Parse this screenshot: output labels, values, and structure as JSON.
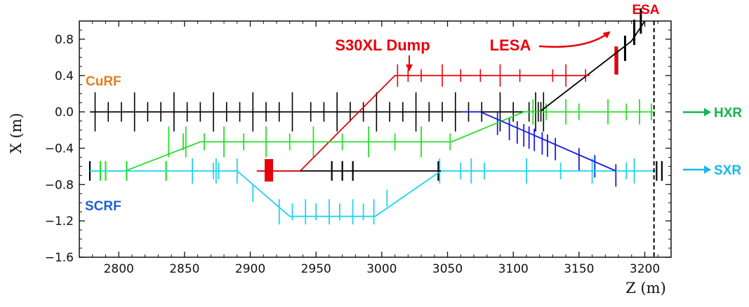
{
  "chart_data": {
    "type": "line",
    "title": "",
    "xlabel": "Z (m)",
    "ylabel": "X (m)",
    "xlim": [
      2770,
      3220
    ],
    "ylim": [
      -1.6,
      1.0
    ],
    "xticks": [
      2800,
      2850,
      2900,
      2950,
      3000,
      3050,
      3100,
      3150,
      3200
    ],
    "yticks": [
      -1.6,
      -1.2,
      -0.8,
      -0.4,
      0.0,
      0.4,
      0.8
    ],
    "ytick_labels": [
      "−1.6",
      "−1.2",
      "−0.8",
      "−0.4",
      "0.0",
      "0.4",
      "0.8"
    ],
    "grid": false,
    "series": [
      {
        "name": "CuRF",
        "color": "#e0801e",
        "lines": [
          {
            "color": "#000000",
            "x": [
              2778,
              3120
            ],
            "y": [
              0.0,
              0.0
            ]
          },
          {
            "color": "#000000",
            "x": [
              3120,
              3190,
              3200
            ],
            "y": [
              0.0,
              0.78,
              1.0
            ]
          },
          {
            "color": "#e8000b",
            "x": [
              2938,
              3010,
              3158
            ],
            "y": [
              -0.65,
              0.4,
              0.4
            ]
          }
        ]
      },
      {
        "name": "SCRF",
        "color": "#1f5fd6",
        "lines": [
          {
            "color": "#26e026",
            "x": [
              2778,
              2805,
              2862,
              3053,
              3108,
              3208
            ],
            "y": [
              -0.65,
              -0.65,
              -0.33,
              -0.33,
              0.0,
              0.0
            ]
          },
          {
            "color": "#1fd3ef",
            "x": [
              2778,
              2890,
              2930,
              2995,
              3045,
              3208
            ],
            "y": [
              -0.65,
              -0.65,
              -1.15,
              -1.15,
              -0.65,
              -0.65
            ]
          },
          {
            "color": "#1a1ae6",
            "x": [
              3060,
              3075,
              3178
            ],
            "y": [
              0.0,
              0.0,
              -0.65
            ]
          },
          {
            "color": "#000000",
            "x": [
              2905,
              3045
            ],
            "y": [
              -0.65,
              -0.65
            ]
          },
          {
            "color": "#e8000b",
            "x": [
              2905,
              2938
            ],
            "y": [
              -0.65,
              -0.65
            ]
          }
        ]
      }
    ],
    "elements": {
      "black": [
        2782,
        2792,
        2802,
        2812,
        2822,
        2832,
        2842,
        2852,
        2862,
        2872,
        2882,
        2892,
        2902,
        2912,
        2922,
        2932,
        2946,
        2956,
        2966,
        2976,
        2986,
        2996,
        3006,
        3016,
        3026,
        3036,
        3046,
        3056,
        3066,
        3076,
        3090,
        3100,
        3112,
        3117,
        3119,
        3121,
        3123
      ],
      "black_low": [
        2778,
        2962,
        2970,
        2978,
        3043,
        3209,
        3213
      ],
      "black_ramp": [
        3179,
        3185,
        3192,
        3197
      ],
      "green_mid": [
        2838,
        2849,
        2851,
        2865,
        2880,
        2895,
        2912,
        2930,
        2948,
        2970,
        2990,
        3010,
        3030,
        3052
      ],
      "green_top": [
        3115,
        3125,
        3140,
        3150,
        3172,
        3186,
        3196,
        3205
      ],
      "green_low": [
        2786,
        2790,
        2806,
        2836
      ],
      "cyan_low": [
        2856,
        2872,
        2874,
        2876,
        2890,
        2902,
        2922,
        2932,
        2942,
        2950,
        2960,
        2968,
        2978,
        2986,
        2994,
        3004,
        3044,
        3060,
        3068,
        3078,
        3110,
        3136,
        3160,
        3186,
        3192
      ],
      "red_top": [
        3012,
        3020,
        3030,
        3046,
        3060,
        3075,
        3090,
        3105,
        3130,
        3140,
        3155
      ],
      "blue_slant": [
        3088,
        3097,
        3103,
        3108,
        3112,
        3116,
        3122,
        3126,
        3132,
        3150,
        3162,
        3178
      ]
    },
    "annotations": {
      "s30xl_dump": "S30XL Dump",
      "lesa": "LESA",
      "esa": "ESA",
      "curf": "CuRF",
      "scrf": "SCRF",
      "hxr": "HXR",
      "sxr": "SXR"
    },
    "colors": {
      "black": "#000000",
      "red": "#e8000b",
      "green": "#26e026",
      "cyan": "#1fd3ef",
      "blue": "#1a1ae6",
      "orange": "#e0801e",
      "label_blue": "#1f5fd6",
      "hxr": "#14b450",
      "sxr": "#18b8ea"
    },
    "marker_line_x": 3207
  }
}
